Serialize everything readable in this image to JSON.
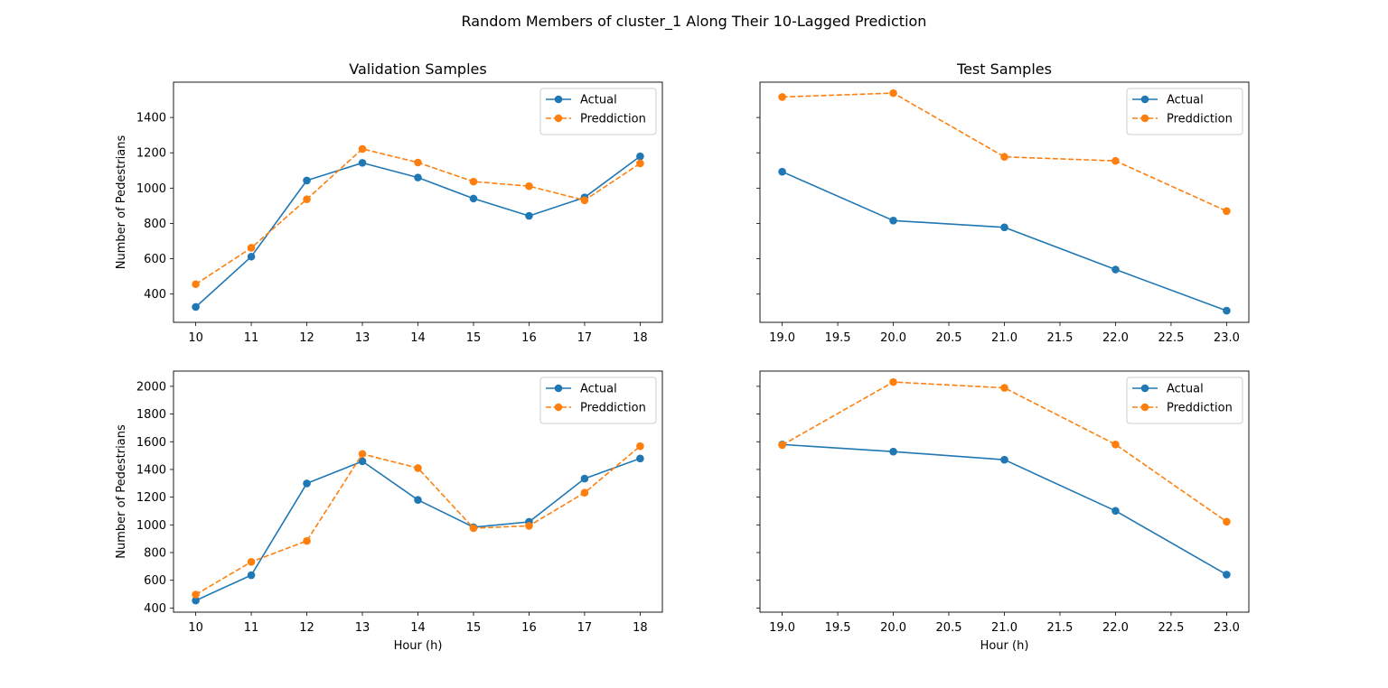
{
  "figure": {
    "suptitle": "Random Members of cluster_1 Along Their 10-Lagged Prediction"
  },
  "colors": {
    "actual": "#1f77b4",
    "prediction": "#ff7f0e"
  },
  "chart_data": [
    {
      "type": "line",
      "title": "Validation Samples",
      "xlabel": "",
      "ylabel": "Number of Pedestrians",
      "xlim": [
        9.6,
        18.4
      ],
      "ylim": [
        240,
        1600
      ],
      "xticks": [
        10,
        11,
        12,
        13,
        14,
        15,
        16,
        17,
        18
      ],
      "xtick_labels": [
        "10",
        "11",
        "12",
        "13",
        "14",
        "15",
        "16",
        "17",
        "18"
      ],
      "yticks": [
        400,
        600,
        800,
        1000,
        1200,
        1400
      ],
      "ytick_labels": [
        "400",
        "600",
        "800",
        "1000",
        "1200",
        "1400"
      ],
      "show_ytick_labels": true,
      "legend": "top-right",
      "x": [
        10,
        11,
        12,
        13,
        14,
        15,
        16,
        17,
        18
      ],
      "series": [
        {
          "name": "Actual",
          "style": "solid",
          "values": [
            327,
            612,
            1043,
            1143,
            1060,
            941,
            843,
            947,
            1180
          ]
        },
        {
          "name": "Preddiction",
          "style": "dashed",
          "values": [
            456,
            662,
            937,
            1222,
            1145,
            1037,
            1011,
            931,
            1140
          ]
        }
      ]
    },
    {
      "type": "line",
      "title": "Test Samples",
      "xlabel": "",
      "ylabel": "",
      "xlim": [
        18.8,
        23.2
      ],
      "ylim": [
        240,
        1600
      ],
      "xticks": [
        19.0,
        19.5,
        20.0,
        20.5,
        21.0,
        21.5,
        22.0,
        22.5,
        23.0
      ],
      "xtick_labels": [
        "19.0",
        "19.5",
        "20.0",
        "20.5",
        "21.0",
        "21.5",
        "22.0",
        "22.5",
        "23.0"
      ],
      "yticks": [
        400,
        600,
        800,
        1000,
        1200,
        1400
      ],
      "ytick_labels": [
        "400",
        "600",
        "800",
        "1000",
        "1200",
        "1400"
      ],
      "show_ytick_labels": false,
      "legend": "top-right",
      "x": [
        19,
        20,
        21,
        22,
        23
      ],
      "series": [
        {
          "name": "Actual",
          "style": "solid",
          "values": [
            1093,
            816,
            778,
            539,
            306
          ]
        },
        {
          "name": "Preddiction",
          "style": "dashed",
          "values": [
            1516,
            1538,
            1177,
            1154,
            870
          ]
        }
      ]
    },
    {
      "type": "line",
      "title": "",
      "xlabel": "Hour (h)",
      "ylabel": "Number of Pedestrians",
      "xlim": [
        9.6,
        18.4
      ],
      "ylim": [
        370,
        2110
      ],
      "xticks": [
        10,
        11,
        12,
        13,
        14,
        15,
        16,
        17,
        18
      ],
      "xtick_labels": [
        "10",
        "11",
        "12",
        "13",
        "14",
        "15",
        "16",
        "17",
        "18"
      ],
      "yticks": [
        400,
        600,
        800,
        1000,
        1200,
        1400,
        1600,
        1800,
        2000
      ],
      "ytick_labels": [
        "400",
        "600",
        "800",
        "1000",
        "1200",
        "1400",
        "1600",
        "1800",
        "2000"
      ],
      "show_ytick_labels": true,
      "legend": "top-right",
      "x": [
        10,
        11,
        12,
        13,
        14,
        15,
        16,
        17,
        18
      ],
      "series": [
        {
          "name": "Actual",
          "style": "solid",
          "values": [
            454,
            637,
            1299,
            1459,
            1180,
            983,
            1022,
            1334,
            1479
          ]
        },
        {
          "name": "Preddiction",
          "style": "dashed",
          "values": [
            497,
            733,
            884,
            1512,
            1410,
            976,
            993,
            1232,
            1568
          ]
        }
      ]
    },
    {
      "type": "line",
      "title": "",
      "xlabel": "Hour (h)",
      "ylabel": "",
      "xlim": [
        18.8,
        23.2
      ],
      "ylim": [
        370,
        2110
      ],
      "xticks": [
        19.0,
        19.5,
        20.0,
        20.5,
        21.0,
        21.5,
        22.0,
        22.5,
        23.0
      ],
      "xtick_labels": [
        "19.0",
        "19.5",
        "20.0",
        "20.5",
        "21.0",
        "21.5",
        "22.0",
        "22.5",
        "23.0"
      ],
      "yticks": [
        400,
        600,
        800,
        1000,
        1200,
        1400,
        1600,
        1800,
        2000
      ],
      "ytick_labels": [
        "400",
        "600",
        "800",
        "1000",
        "1200",
        "1400",
        "1600",
        "1800",
        "2000"
      ],
      "show_ytick_labels": false,
      "legend": "top-right",
      "x": [
        19,
        20,
        21,
        22,
        23
      ],
      "series": [
        {
          "name": "Actual",
          "style": "solid",
          "values": [
            1580,
            1529,
            1470,
            1101,
            641
          ]
        },
        {
          "name": "Preddiction",
          "style": "dashed",
          "values": [
            1576,
            2031,
            1989,
            1580,
            1023
          ]
        }
      ]
    }
  ]
}
